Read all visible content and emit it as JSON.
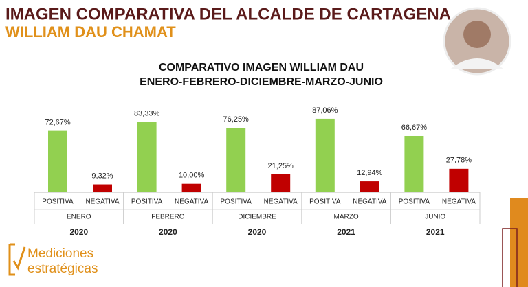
{
  "header": {
    "title": "IMAGEN COMPARATIVA DEL ALCALDE DE CARTAGENA",
    "subtitle": "WILLIAM DAU CHAMAT"
  },
  "logo": {
    "line1": "Mediciones",
    "line2": "estratégicas"
  },
  "chart_data": {
    "type": "bar",
    "title": "COMPARATIVO IMAGEN WILLIAM DAU",
    "subtitle": "ENERO-FEBRERO-DICIEMBRE-MARZO-JUNIO",
    "categories": [
      "ENERO",
      "FEBRERO",
      "DICIEMBRE",
      "MARZO",
      "JUNIO"
    ],
    "years": [
      "2020",
      "2020",
      "2020",
      "2021",
      "2021"
    ],
    "series": [
      {
        "name": "POSITIVA",
        "color": "#92d050",
        "values": [
          72.67,
          83.33,
          76.25,
          87.06,
          66.67
        ],
        "value_labels": [
          "72,67%",
          "83,33%",
          "76,25%",
          "87,06%",
          "66,67%"
        ]
      },
      {
        "name": "NEGATIVA",
        "color": "#c00000",
        "values": [
          9.32,
          10.0,
          21.25,
          12.94,
          27.78
        ],
        "value_labels": [
          "9,32%",
          "10,00%",
          "21,25%",
          "12,94%",
          "27,78%"
        ]
      }
    ]
  }
}
